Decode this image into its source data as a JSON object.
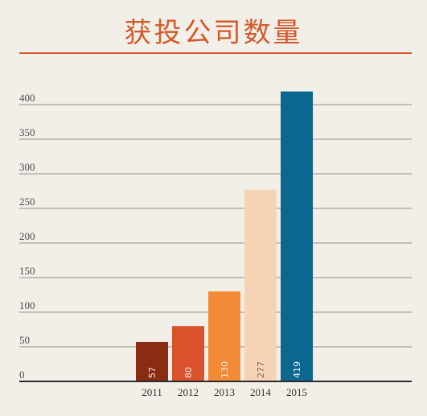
{
  "colors": {
    "background": "#f2efe9",
    "title": "#d35a2b",
    "title_rule": "#d35a2b",
    "grid": "#8f8f8f",
    "axis": "#2b2b2b",
    "bars": [
      "#8a2c12",
      "#d9522b",
      "#f28a36",
      "#f6d3b4",
      "#0b6690"
    ],
    "value_label_light": "#f2efe9",
    "value_label_dark": "#7a6a60"
  },
  "chart_data": {
    "type": "bar",
    "title": "获投公司数量",
    "categories": [
      "2011",
      "2012",
      "2013",
      "2014",
      "2015"
    ],
    "values": [
      57,
      80,
      130,
      277,
      419
    ],
    "value_labels": [
      "57",
      "80",
      "130",
      "277",
      "419"
    ],
    "ylim": [
      0,
      400
    ],
    "yticks": [
      0,
      50,
      100,
      150,
      200,
      250,
      300,
      350,
      400
    ],
    "xlabel": "",
    "ylabel": "",
    "grid": true,
    "legend": "none"
  }
}
